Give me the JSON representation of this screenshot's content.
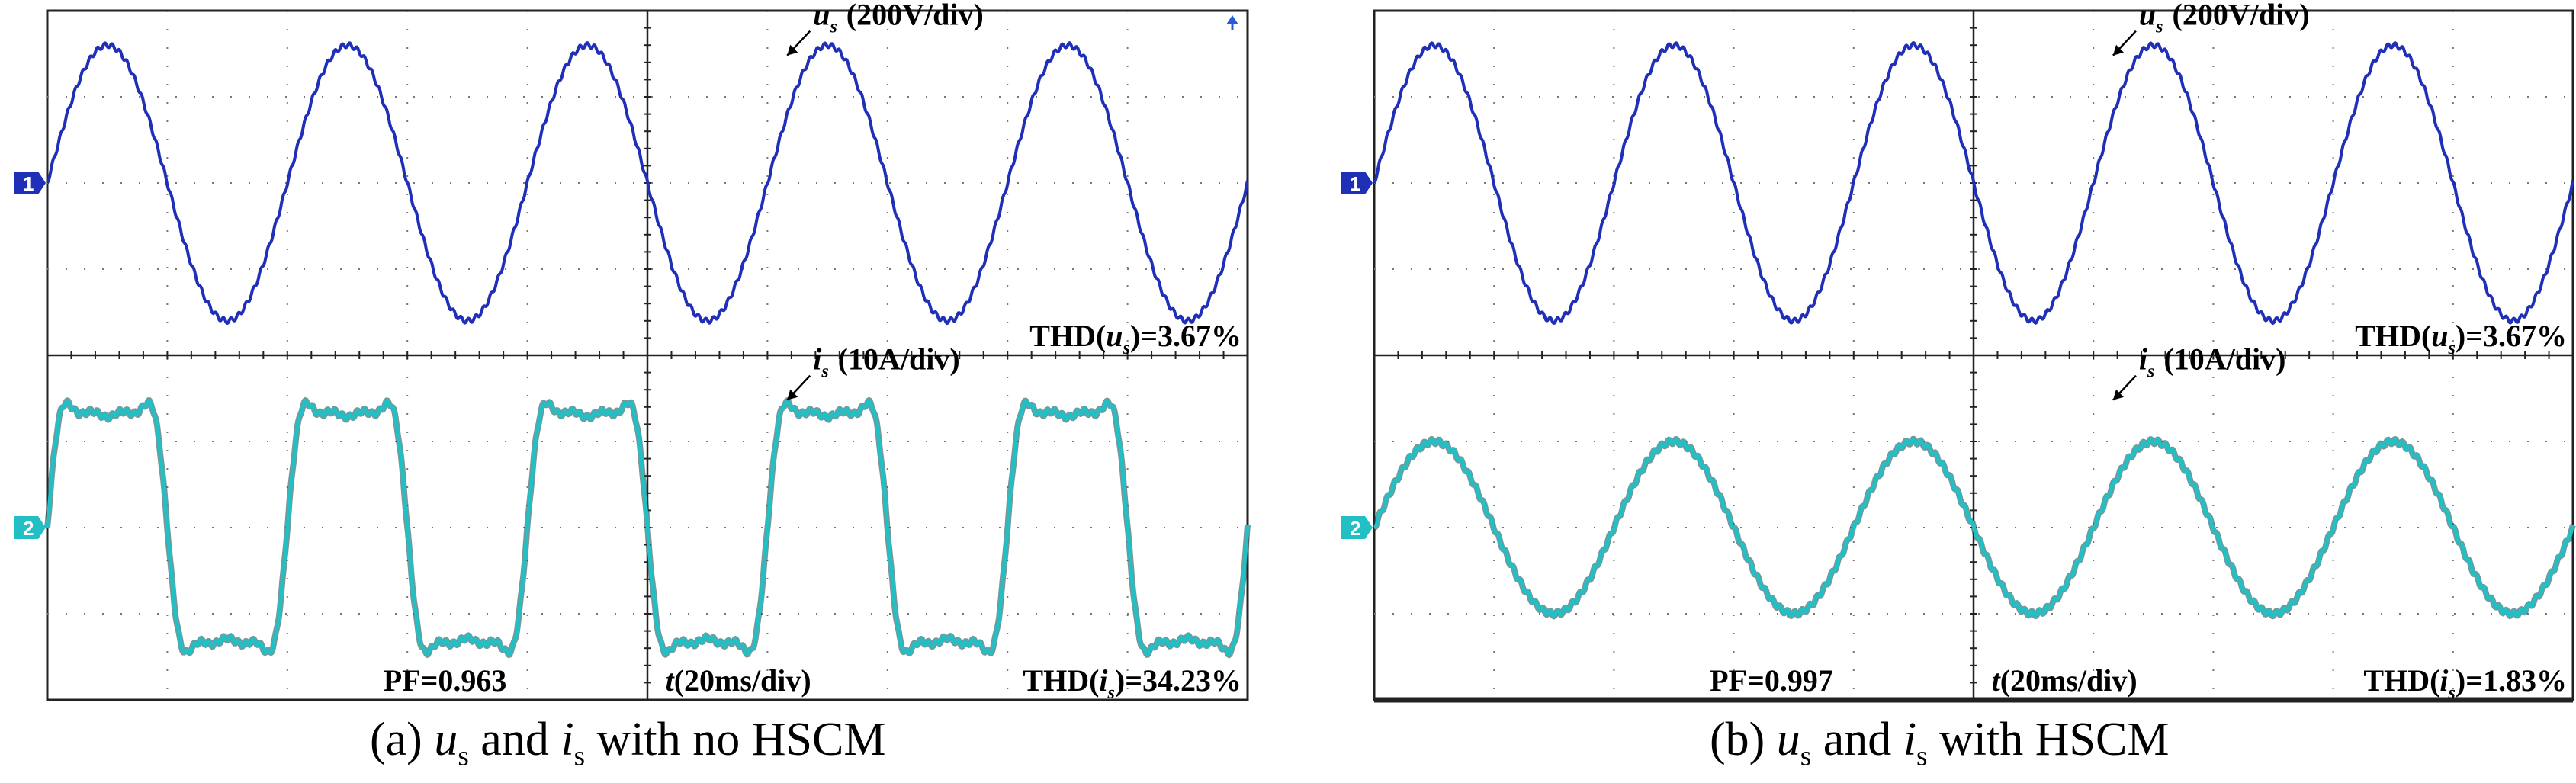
{
  "colors": {
    "voltage": "#1F2FB8",
    "current": "#22BFC4",
    "grid": "#222222",
    "background": "#ffffff",
    "arrow": "#000000"
  },
  "chart_data": [
    {
      "type": "line",
      "panel": "a",
      "caption": {
        "pre": "(a) ",
        "u": "u",
        "s1": "s",
        "mid": " and ",
        "i": "i",
        "s2": "s",
        "post": " with no HSCM"
      },
      "channels": [
        {
          "marker": "1",
          "label_var": "u",
          "label_sub": "s",
          "label_scale": "(200V/div)",
          "thd_pre": "THD(",
          "thd_var": "u",
          "thd_sub": "s",
          "thd_post": ")=3.67%",
          "amplitude_div": 1.6,
          "periods": 10,
          "phase_deg": 0,
          "distortion": "none"
        },
        {
          "marker": "2",
          "label_var": "i",
          "label_sub": "s",
          "label_scale": "(10A/div)",
          "thd_pre": "THD(",
          "thd_var": "i",
          "thd_sub": "s",
          "thd_post": ")=34.23%",
          "amplitude_div": 1.45,
          "periods": 10,
          "phase_deg": 0,
          "distortion": "rectifier"
        }
      ],
      "pf_label": "PF=0.963",
      "time_label": {
        "var": "t",
        "text": "(20ms/div)"
      },
      "grid": true,
      "divisions": {
        "x": 10,
        "y": 8
      }
    },
    {
      "type": "line",
      "panel": "b",
      "caption": {
        "pre": "(b) ",
        "u": "u",
        "s1": "s",
        "mid": " and ",
        "i": "i",
        "s2": "s",
        "post": " with HSCM"
      },
      "channels": [
        {
          "marker": "1",
          "label_var": "u",
          "label_sub": "s",
          "label_scale": "(200V/div)",
          "thd_pre": "THD(",
          "thd_var": "u",
          "thd_sub": "s",
          "thd_post": ")=3.67%",
          "amplitude_div": 1.6,
          "periods": 10,
          "phase_deg": 0,
          "distortion": "none"
        },
        {
          "marker": "2",
          "label_var": "i",
          "label_sub": "s",
          "label_scale": "(10A/div)",
          "thd_pre": "THD(",
          "thd_var": "i",
          "thd_sub": "s",
          "thd_post": ")=1.83%",
          "amplitude_div": 1.0,
          "periods": 10,
          "phase_deg": 0,
          "distortion": "none"
        }
      ],
      "pf_label": "PF=0.997",
      "time_label": {
        "var": "t",
        "text": "(20ms/div)"
      },
      "grid": true,
      "divisions": {
        "x": 10,
        "y": 8
      }
    }
  ]
}
